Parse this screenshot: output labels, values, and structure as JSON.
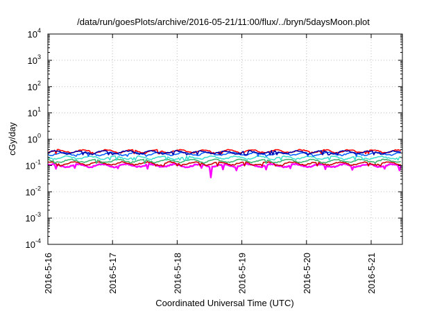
{
  "chart_data": {
    "type": "line",
    "title": "/data/run/goesPlots/archive/2016-05-21/11:00/flux/../bryn/5daysMoon.plot",
    "xlabel": "Coordinated Universal Time (UTC)",
    "ylabel": "cGy/day",
    "yscale": "log",
    "ylim": [
      0.0001,
      10000
    ],
    "xlim": [
      "2016-05-16 00:00",
      "2016-05-21 11:00"
    ],
    "x_ticks": [
      "2016-5-16",
      "2016-5-17",
      "2016-5-18",
      "2016-5-19",
      "2016-5-20",
      "2016-5-21"
    ],
    "y_ticks": [
      {
        "base": "10",
        "exp": "-4"
      },
      {
        "base": "10",
        "exp": "-3"
      },
      {
        "base": "10",
        "exp": "-2"
      },
      {
        "base": "10",
        "exp": "-1"
      },
      {
        "base": "10",
        "exp": "0"
      },
      {
        "base": "10",
        "exp": "1"
      },
      {
        "base": "10",
        "exp": "2"
      },
      {
        "base": "10",
        "exp": "3"
      },
      {
        "base": "10",
        "exp": "4"
      }
    ],
    "grid": true,
    "legend": "none",
    "x_start": "2016-05-16 00:00",
    "x_end": "2016-05-21 11:00",
    "series": [
      {
        "color": "#ff00ff",
        "baseline": 0.1,
        "dips": [
          {
            "x": "2016-05-16 03:00",
            "y": 0.075
          },
          {
            "x": "2016-05-16 10:00",
            "y": 0.08
          },
          {
            "x": "2016-05-17 02:00",
            "y": 0.078
          },
          {
            "x": "2016-05-17 13:00",
            "y": 0.075
          },
          {
            "x": "2016-05-18 09:00",
            "y": 0.08
          },
          {
            "x": "2016-05-18 12:30",
            "y": 0.035
          },
          {
            "x": "2016-05-18 17:00",
            "y": 0.07
          },
          {
            "x": "2016-05-18 22:00",
            "y": 0.065
          },
          {
            "x": "2016-05-19 09:00",
            "y": 0.07
          },
          {
            "x": "2016-05-19 18:00",
            "y": 0.078
          },
          {
            "x": "2016-05-20 07:00",
            "y": 0.072
          },
          {
            "x": "2016-05-20 17:00",
            "y": 0.068
          },
          {
            "x": "2016-05-21 05:00",
            "y": 0.075
          },
          {
            "x": "2016-05-21 10:30",
            "y": 0.065
          }
        ]
      },
      {
        "color": "#cc0000",
        "baseline": 0.12
      },
      {
        "color": "#3cb371",
        "baseline": 0.15
      },
      {
        "color": "#40e0d0",
        "baseline": 0.2
      },
      {
        "color": "#0a64ff",
        "baseline": 0.28
      },
      {
        "color": "#ff0000",
        "baseline": 0.35
      },
      {
        "color": "#0000aa",
        "baseline": 0.32
      }
    ]
  }
}
